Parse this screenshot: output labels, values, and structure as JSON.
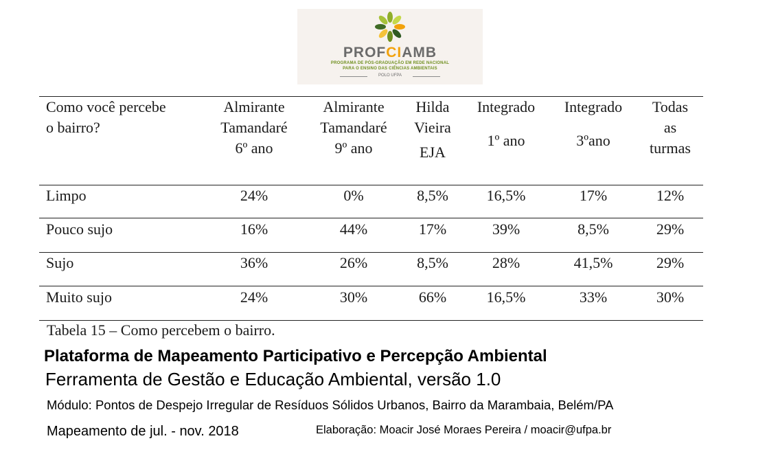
{
  "logo": {
    "brand_a": "PROF",
    "brand_b": "CI",
    "brand_c": "AMB",
    "sub1": "PROGRAMA DE PÓS-GRADUAÇÃO EM REDE NACIONAL",
    "sub2": "PARA O ENSINO DAS CIÊNCIAS AMBIENTAIS",
    "polo": "POLO UFPA",
    "colors": {
      "green": "#6f8f1e",
      "orange": "#f2a20c",
      "gray": "#6b6b6b"
    }
  },
  "table": {
    "headers": [
      [
        "Como você percebe",
        "o bairro?"
      ],
      [
        "Almirante",
        "Tamandaré",
        "6º ano"
      ],
      [
        "Almirante",
        "Tamandaré",
        "9º ano"
      ],
      [
        "Hilda",
        "Vieira",
        "EJA"
      ],
      [
        "Integrado",
        "1º ano"
      ],
      [
        "Integrado",
        "3ºano"
      ],
      [
        "Todas",
        "as",
        "turmas"
      ]
    ],
    "rows": [
      [
        "Limpo",
        "24%",
        "0%",
        "8,5%",
        "16,5%",
        "17%",
        "12%"
      ],
      [
        "Pouco sujo",
        "16%",
        "44%",
        "17%",
        "39%",
        "8,5%",
        "29%"
      ],
      [
        "Sujo",
        "36%",
        "26%",
        "8,5%",
        "28%",
        "41,5%",
        "29%"
      ],
      [
        "Muito sujo",
        "24%",
        "30%",
        "66%",
        "16,5%",
        "33%",
        "30%"
      ]
    ],
    "caption": "Tabela 15 – Como percebem o bairro."
  },
  "footer": {
    "title": "Plataforma de Mapeamento Participativo e Percepção Ambiental",
    "subtitle": "Ferramenta de Gestão e Educação Ambiental, versão 1.0",
    "module": "Módulo: Pontos de Despejo Irregular de Resíduos Sólidos Urbanos, Bairro da Marambaia, Belém/PA",
    "period": "Mapeamento de jul. - nov. 2018",
    "author": "Elaboração: Moacir José Moraes Pereira / moacir@ufpa.br"
  }
}
